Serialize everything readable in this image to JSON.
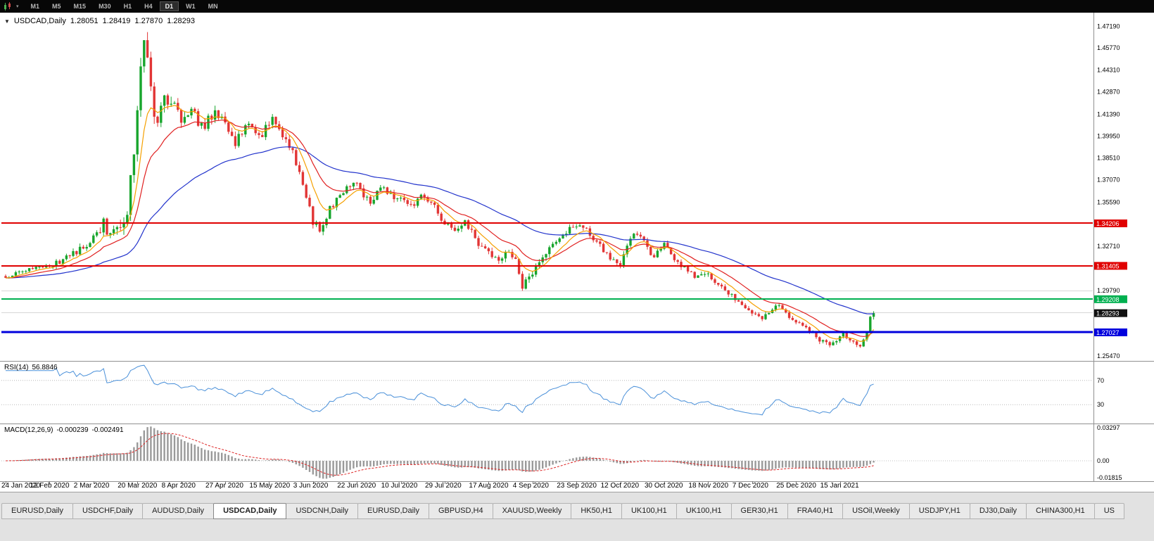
{
  "toolbar": {
    "timeframes": [
      "M1",
      "M5",
      "M15",
      "M30",
      "H1",
      "H4",
      "D1",
      "W1",
      "MN"
    ],
    "active": "D1"
  },
  "chart": {
    "symbol": "USDCAD,Daily",
    "ohlc": {
      "open": "1.28051",
      "high": "1.28419",
      "low": "1.27870",
      "close": "1.28293"
    }
  },
  "chart_data": {
    "type": "candlestick",
    "x_axis_labels": [
      "24 Jan 2020",
      "12 Feb 2020",
      "2 Mar 2020",
      "20 Mar 2020",
      "8 Apr 2020",
      "27 Apr 2020",
      "15 May 2020",
      "3 Jun 2020",
      "22 Jun 2020",
      "10 Jul 2020",
      "29 Jul 2020",
      "17 Aug 2020",
      "4 Sep 2020",
      "23 Sep 2020",
      "12 Oct 2020",
      "30 Oct 2020",
      "18 Nov 2020",
      "7 Dec 2020",
      "25 Dec 2020",
      "15 Jan 2021"
    ],
    "y_axis_labels": [
      "1.47190",
      "1.45770",
      "1.44310",
      "1.42870",
      "1.41390",
      "1.39950",
      "1.38510",
      "1.37070",
      "1.35590",
      "1.32710",
      "1.29790",
      "1.25470"
    ],
    "levels": [
      {
        "price": "1.34206",
        "color": "#e00000",
        "width": 2
      },
      {
        "price": "1.31405",
        "color": "#e00000",
        "width": 2
      },
      {
        "price": "1.29208",
        "color": "#00b050",
        "width": 2
      },
      {
        "price": "1.27027",
        "color": "#0000dd",
        "width": 3
      }
    ],
    "current_tag": {
      "price": "1.28293",
      "color": "#111111"
    },
    "gridlines": [
      "1.29790",
      "1.28350"
    ],
    "candle_colors": {
      "up": "#17a52c",
      "down": "#e23535"
    },
    "moving_averages": [
      {
        "period": 55,
        "color": "#2233cc"
      },
      {
        "period": 18,
        "color": "#e02020"
      },
      {
        "period": 8,
        "color": "#f5a000"
      }
    ],
    "series": {
      "count": 258,
      "seed": 20210122,
      "anchors": [
        [
          0,
          1.3055
        ],
        [
          5,
          1.3105
        ],
        [
          10,
          1.3135
        ],
        [
          15,
          1.316
        ],
        [
          20,
          1.3225
        ],
        [
          24,
          1.3275
        ],
        [
          27,
          1.336
        ],
        [
          29,
          1.342
        ],
        [
          31,
          1.333
        ],
        [
          34,
          1.3385
        ],
        [
          36,
          1.348
        ],
        [
          38,
          1.39
        ],
        [
          39,
          1.418
        ],
        [
          40,
          1.442
        ],
        [
          41,
          1.4605
        ],
        [
          42,
          1.45
        ],
        [
          43,
          1.435
        ],
        [
          44,
          1.412
        ],
        [
          45,
          1.406
        ],
        [
          47,
          1.427
        ],
        [
          50,
          1.419
        ],
        [
          52,
          1.412
        ],
        [
          55,
          1.4185
        ],
        [
          58,
          1.405
        ],
        [
          62,
          1.415
        ],
        [
          65,
          1.409
        ],
        [
          68,
          1.395
        ],
        [
          72,
          1.409
        ],
        [
          75,
          1.398
        ],
        [
          79,
          1.411
        ],
        [
          82,
          1.3985
        ],
        [
          85,
          1.388
        ],
        [
          88,
          1.368
        ],
        [
          91,
          1.343
        ],
        [
          93,
          1.339
        ],
        [
          96,
          1.351
        ],
        [
          100,
          1.362
        ],
        [
          103,
          1.37
        ],
        [
          105,
          1.363
        ],
        [
          108,
          1.356
        ],
        [
          111,
          1.367
        ],
        [
          114,
          1.361
        ],
        [
          117,
          1.358
        ],
        [
          120,
          1.353
        ],
        [
          123,
          1.36
        ],
        [
          126,
          1.356
        ],
        [
          130,
          1.342
        ],
        [
          133,
          1.339
        ],
        [
          136,
          1.343
        ],
        [
          140,
          1.329
        ],
        [
          143,
          1.323
        ],
        [
          146,
          1.317
        ],
        [
          149,
          1.325
        ],
        [
          151,
          1.317
        ],
        [
          153,
          1.301
        ],
        [
          156,
          1.308
        ],
        [
          158,
          1.317
        ],
        [
          162,
          1.327
        ],
        [
          166,
          1.337
        ],
        [
          169,
          1.34
        ],
        [
          172,
          1.337
        ],
        [
          175,
          1.33
        ],
        [
          178,
          1.321
        ],
        [
          182,
          1.315
        ],
        [
          185,
          1.333
        ],
        [
          186,
          1.337
        ],
        [
          189,
          1.329
        ],
        [
          192,
          1.319
        ],
        [
          195,
          1.331
        ],
        [
          198,
          1.318
        ],
        [
          201,
          1.312
        ],
        [
          204,
          1.307
        ],
        [
          208,
          1.309
        ],
        [
          211,
          1.302
        ],
        [
          214,
          1.296
        ],
        [
          217,
          1.29
        ],
        [
          221,
          1.283
        ],
        [
          224,
          1.279
        ],
        [
          227,
          1.285
        ],
        [
          229,
          1.289
        ],
        [
          233,
          1.277
        ],
        [
          236,
          1.274
        ],
        [
          240,
          1.267
        ],
        [
          244,
          1.262
        ],
        [
          246,
          1.265
        ],
        [
          248,
          1.269
        ],
        [
          250,
          1.264
        ],
        [
          253,
          1.261
        ],
        [
          255,
          1.27
        ],
        [
          256,
          1.2805
        ],
        [
          257,
          1.28293
        ]
      ],
      "volatility": [
        [
          0,
          0.0018
        ],
        [
          25,
          0.0028
        ],
        [
          36,
          0.0065
        ],
        [
          45,
          0.006
        ],
        [
          55,
          0.0042
        ],
        [
          70,
          0.0034
        ],
        [
          90,
          0.0034
        ],
        [
          110,
          0.0026
        ],
        [
          130,
          0.0024
        ],
        [
          150,
          0.0028
        ],
        [
          170,
          0.0022
        ],
        [
          190,
          0.0024
        ],
        [
          210,
          0.002
        ],
        [
          230,
          0.0018
        ],
        [
          245,
          0.0022
        ],
        [
          257,
          0.0015
        ]
      ]
    },
    "last_candle": {
      "o": 1.28051,
      "h": 1.28419,
      "l": 1.2787,
      "c": 1.28293
    }
  },
  "indicators": {
    "rsi": {
      "label": "RSI(14)",
      "value": "56.8846",
      "levels": [
        70,
        30
      ],
      "level_labels": [
        "70",
        "30"
      ],
      "color": "#4a90d9"
    },
    "macd": {
      "label": "MACD(12,26,9)",
      "value_main": "-0.000239",
      "value_signal": "-0.002491",
      "axis_labels": {
        "top": "0.03297",
        "zero": "0.00",
        "bottom": "-0.01815"
      },
      "scale_max": 0.03297,
      "scale_min": -0.01815,
      "histogram_color": "#9a9a9a",
      "signal_color": "#dd2222"
    }
  },
  "tabs": [
    {
      "label": "EURUSD,Daily"
    },
    {
      "label": "USDCHF,Daily"
    },
    {
      "label": "AUDUSD,Daily"
    },
    {
      "label": "USDCAD,Daily",
      "active": true
    },
    {
      "label": "USDCNH,Daily"
    },
    {
      "label": "EURUSD,Daily"
    },
    {
      "label": "GBPUSD,H4"
    },
    {
      "label": "XAUUSD,Weekly"
    },
    {
      "label": "HK50,H1"
    },
    {
      "label": "UK100,H1"
    },
    {
      "label": "UK100,H1"
    },
    {
      "label": "GER30,H1"
    },
    {
      "label": "FRA40,H1"
    },
    {
      "label": "USOil,Weekly"
    },
    {
      "label": "USDJPY,H1"
    },
    {
      "label": "DJ30,Daily"
    },
    {
      "label": "CHINA300,H1"
    },
    {
      "label": "US"
    }
  ]
}
